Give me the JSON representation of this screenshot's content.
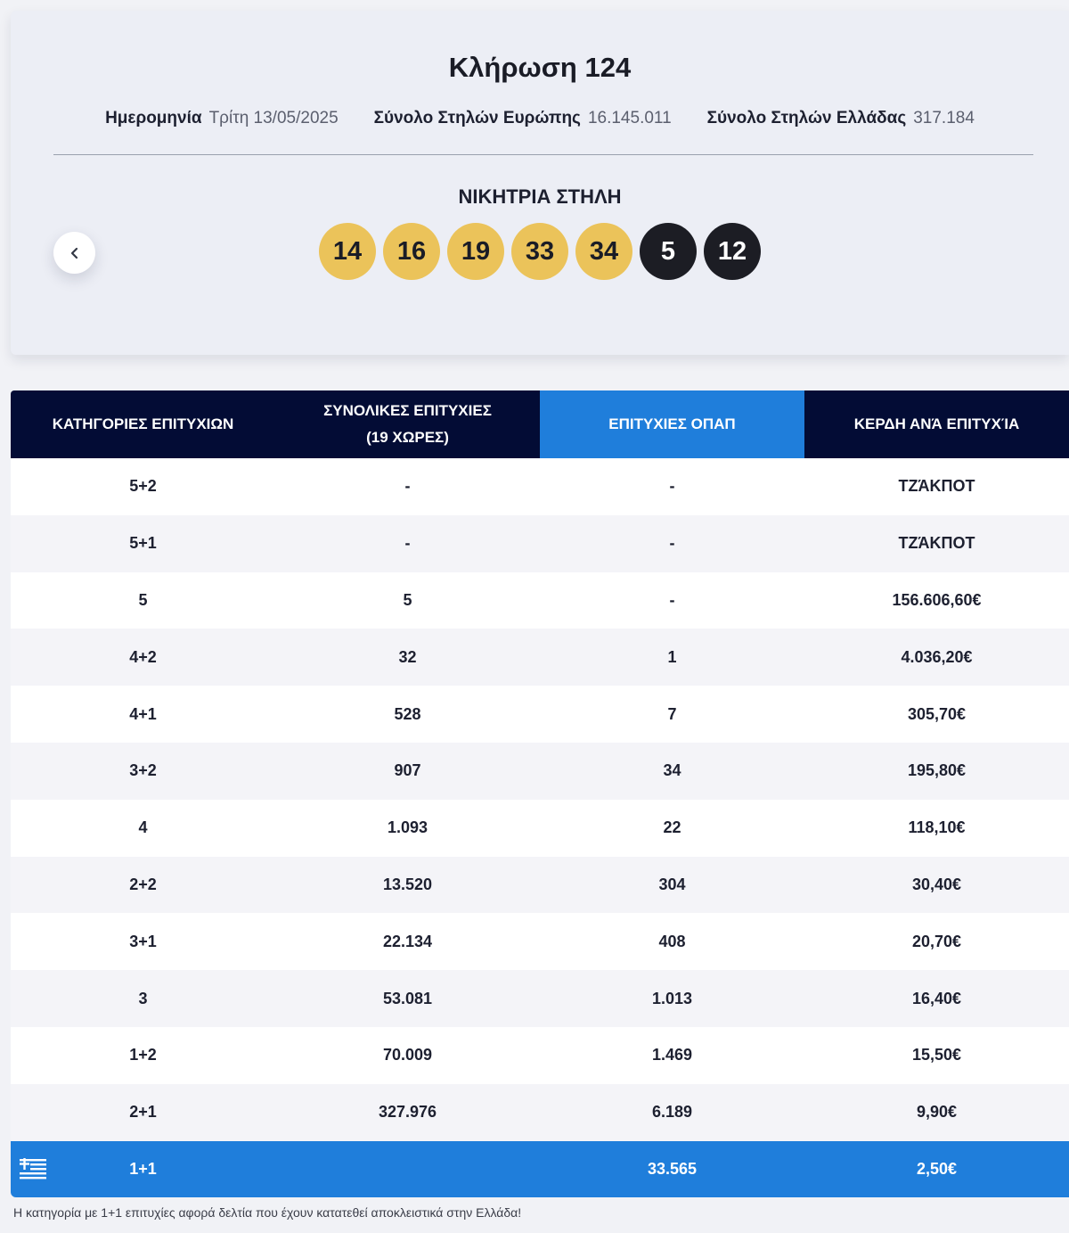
{
  "draw": {
    "title": "Κλήρωση 124",
    "meta": [
      {
        "label": "Ημερομηνία",
        "value": "Τρίτη 13/05/2025"
      },
      {
        "label": "Σύνολο Στηλών Ευρώπης",
        "value": "16.145.011"
      },
      {
        "label": "Σύνολο Στηλών Ελλάδας",
        "value": "317.184"
      }
    ],
    "winning_label": "ΝΙΚΗΤΡΙΑ ΣΤΗΛΗ",
    "main_numbers": [
      "14",
      "16",
      "19",
      "33",
      "34"
    ],
    "star_numbers": [
      "5",
      "12"
    ],
    "prev_icon": "chevron-left-icon"
  },
  "table": {
    "headers": {
      "categories": "ΚΑΤΗΓΟΡΙΕΣ ΕΠΙΤΥΧΙΩΝ",
      "total_line1": "ΣΥΝΟΛΙΚΕΣ ΕΠΙΤΥΧΙΕΣ",
      "total_line2": "(19 ΧΩΡΕΣ)",
      "opap": "ΕΠΙΤΥΧΙΕΣ ΟΠΑΠ",
      "prize": "ΚΕΡΔΗ ΑΝΆ ΕΠΙΤΥΧΊΑ"
    },
    "rows": [
      {
        "category": "5+2",
        "total": "-",
        "opap": "-",
        "prize": "ΤΖΆΚΠΟΤ"
      },
      {
        "category": "5+1",
        "total": "-",
        "opap": "-",
        "prize": "ΤΖΆΚΠΟΤ"
      },
      {
        "category": "5",
        "total": "5",
        "opap": "-",
        "prize": "156.606,60€"
      },
      {
        "category": "4+2",
        "total": "32",
        "opap": "1",
        "prize": "4.036,20€"
      },
      {
        "category": "4+1",
        "total": "528",
        "opap": "7",
        "prize": "305,70€"
      },
      {
        "category": "3+2",
        "total": "907",
        "opap": "34",
        "prize": "195,80€"
      },
      {
        "category": "4",
        "total": "1.093",
        "opap": "22",
        "prize": "118,10€"
      },
      {
        "category": "2+2",
        "total": "13.520",
        "opap": "304",
        "prize": "30,40€"
      },
      {
        "category": "3+1",
        "total": "22.134",
        "opap": "408",
        "prize": "20,70€"
      },
      {
        "category": "3",
        "total": "53.081",
        "opap": "1.013",
        "prize": "16,40€"
      },
      {
        "category": "1+2",
        "total": "70.009",
        "opap": "1.469",
        "prize": "15,50€"
      },
      {
        "category": "2+1",
        "total": "327.976",
        "opap": "6.189",
        "prize": "9,90€"
      }
    ],
    "greek_row": {
      "icon": "greek-flag-icon",
      "category": "1+1",
      "total": "",
      "opap": "33.565",
      "prize": "2,50€"
    }
  },
  "footnote": "Η κατηγορία με 1+1 επιτυχίες αφορά δελτία που έχουν κατατεθεί αποκλειστικά στην Ελλάδα!",
  "colors": {
    "header_navy": "#030c35",
    "opap_blue": "#1f7edb",
    "main_ball": "#ebc35a",
    "star_ball": "#1c1d24"
  }
}
